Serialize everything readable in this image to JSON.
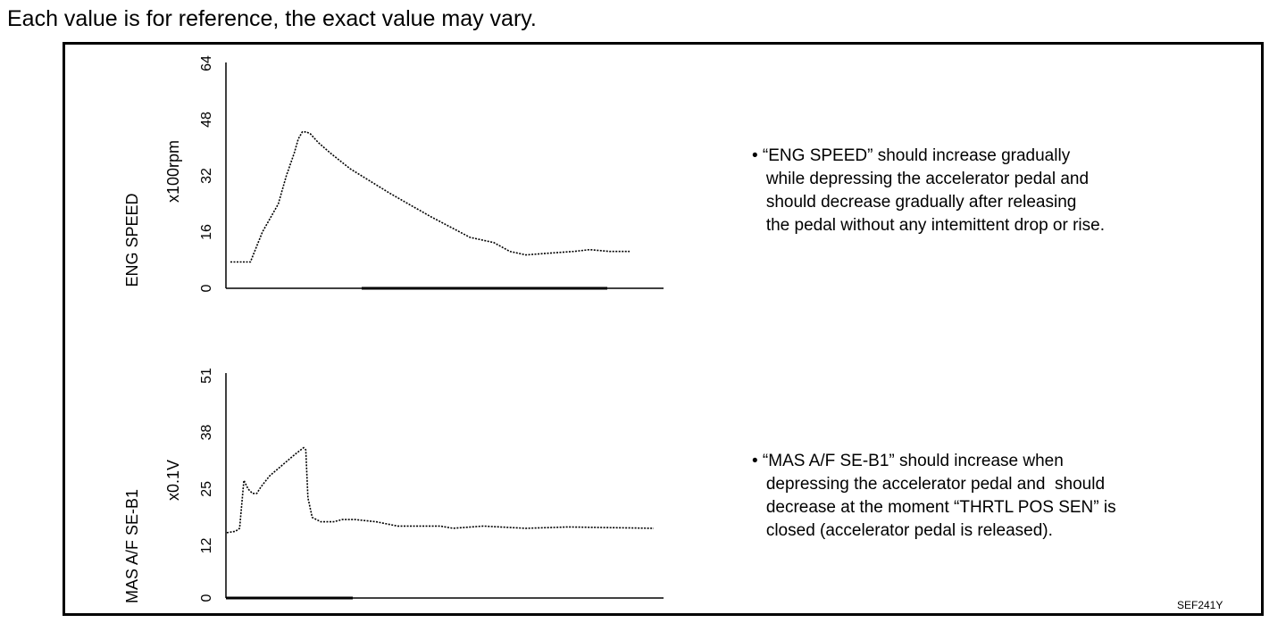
{
  "header": {
    "text": "Each value is for reference, the exact value may vary."
  },
  "chart_data": [
    {
      "type": "line",
      "title": "",
      "ylabel": "ENG SPEED",
      "unit": "x100rpm",
      "ylim": [
        0,
        64
      ],
      "yticks": [
        "0",
        "16",
        "32",
        "48",
        "64"
      ],
      "series": [
        {
          "style": "dotted",
          "values": [
            [
              0,
              7.5
            ],
            [
              2,
              7.5
            ],
            [
              5,
              7.5
            ],
            [
              8,
              16
            ],
            [
              12,
              24
            ],
            [
              14,
              32
            ],
            [
              16,
              38.5
            ],
            [
              17,
              42.5
            ],
            [
              18,
              44.5
            ],
            [
              19,
              44.5
            ],
            [
              20,
              44
            ],
            [
              22,
              41.5
            ],
            [
              25,
              38.5
            ],
            [
              30,
              34
            ],
            [
              40,
              27
            ],
            [
              50,
              20.5
            ],
            [
              60,
              14.5
            ],
            [
              66,
              13
            ],
            [
              70,
              10.5
            ],
            [
              74,
              9.5
            ],
            [
              80,
              10
            ],
            [
              86,
              10.5
            ],
            [
              90,
              11
            ],
            [
              95,
              10.5
            ],
            [
              100,
              10.5
            ]
          ]
        }
      ]
    },
    {
      "type": "line",
      "title": "",
      "ylabel": "MAS A/F SE-B1",
      "unit": "x0.1V",
      "ylim": [
        0,
        51
      ],
      "yticks": [
        "0",
        "12",
        "25",
        "38",
        "51"
      ],
      "series": [
        {
          "style": "dotted",
          "values": [
            [
              0,
              15
            ],
            [
              2,
              15.3
            ],
            [
              3,
              16
            ],
            [
              4,
              27
            ],
            [
              5,
              25
            ],
            [
              6,
              24
            ],
            [
              7,
              24
            ],
            [
              8,
              25.5
            ],
            [
              10,
              28
            ],
            [
              13,
              30.5
            ],
            [
              16,
              33
            ],
            [
              18,
              34.5
            ],
            [
              18.5,
              34
            ],
            [
              19,
              23
            ],
            [
              20,
              18.5
            ],
            [
              22,
              17.5
            ],
            [
              25,
              17.5
            ],
            [
              27,
              18
            ],
            [
              30,
              18
            ],
            [
              35,
              17.5
            ],
            [
              40,
              16.5
            ],
            [
              50,
              16.5
            ],
            [
              53,
              16
            ],
            [
              60,
              16.5
            ],
            [
              70,
              16
            ],
            [
              80,
              16.3
            ],
            [
              100,
              16
            ]
          ]
        }
      ]
    }
  ],
  "notes": {
    "eng": "• “ENG SPEED” should increase gradually\n   while depressing the accelerator pedal and\n   should decrease gradually after releasing\n   the pedal without any intemittent drop or rise.",
    "mas": "• “MAS A/F SE-B1” should increase when\n   depressing the accelerator pedal and  should\n   decrease at the moment “THRTL POS SEN” is\n   closed (accelerator pedal is released)."
  },
  "figure_code": "SEF241Y"
}
